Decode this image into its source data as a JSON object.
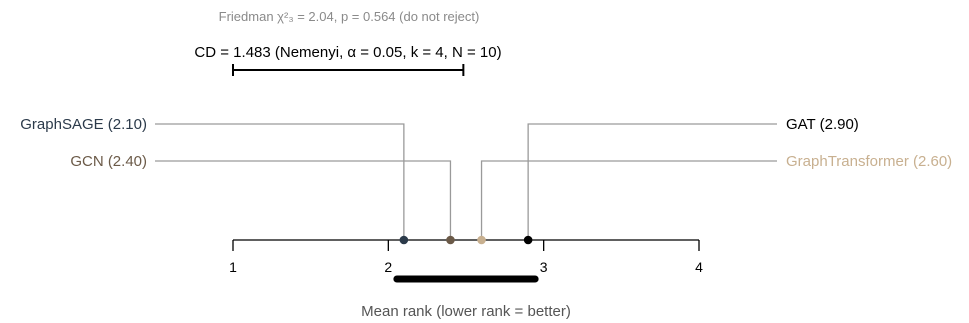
{
  "chart_data": {
    "type": "critical-difference-diagram",
    "title": "",
    "friedman_annotation": "Friedman χ²₃ = 2.04, p = 0.564 (do not reject)",
    "cd_annotation": "CD = 1.483 (Nemenyi, α = 0.05, k = 4, N = 10)",
    "critical_difference": 1.483,
    "xlabel": "Mean rank (lower rank = better)",
    "xlim": [
      1,
      4
    ],
    "ticks": [
      {
        "value": 1,
        "label": "1"
      },
      {
        "value": 2,
        "label": "2"
      },
      {
        "value": 3,
        "label": "3"
      },
      {
        "value": 4,
        "label": "4"
      }
    ],
    "methods": [
      {
        "name": "GraphSAGE",
        "rank": 2.1,
        "label": "GraphSAGE (2.10)",
        "side": "left",
        "level": 1,
        "color": "#2b3a4a"
      },
      {
        "name": "GCN",
        "rank": 2.4,
        "label": "GCN (2.40)",
        "side": "left",
        "level": 2,
        "color": "#6b5a48"
      },
      {
        "name": "GraphTransformer",
        "rank": 2.6,
        "label": "GraphTransformer (2.60)",
        "side": "right",
        "level": 2,
        "color": "#c8b090"
      },
      {
        "name": "GAT",
        "rank": 2.9,
        "label": "GAT (2.90)",
        "side": "right",
        "level": 1,
        "color": "#000000"
      }
    ],
    "cliques": [
      {
        "from": 2.1,
        "to": 2.9
      }
    ],
    "connector_color": "#9a9a9a"
  }
}
